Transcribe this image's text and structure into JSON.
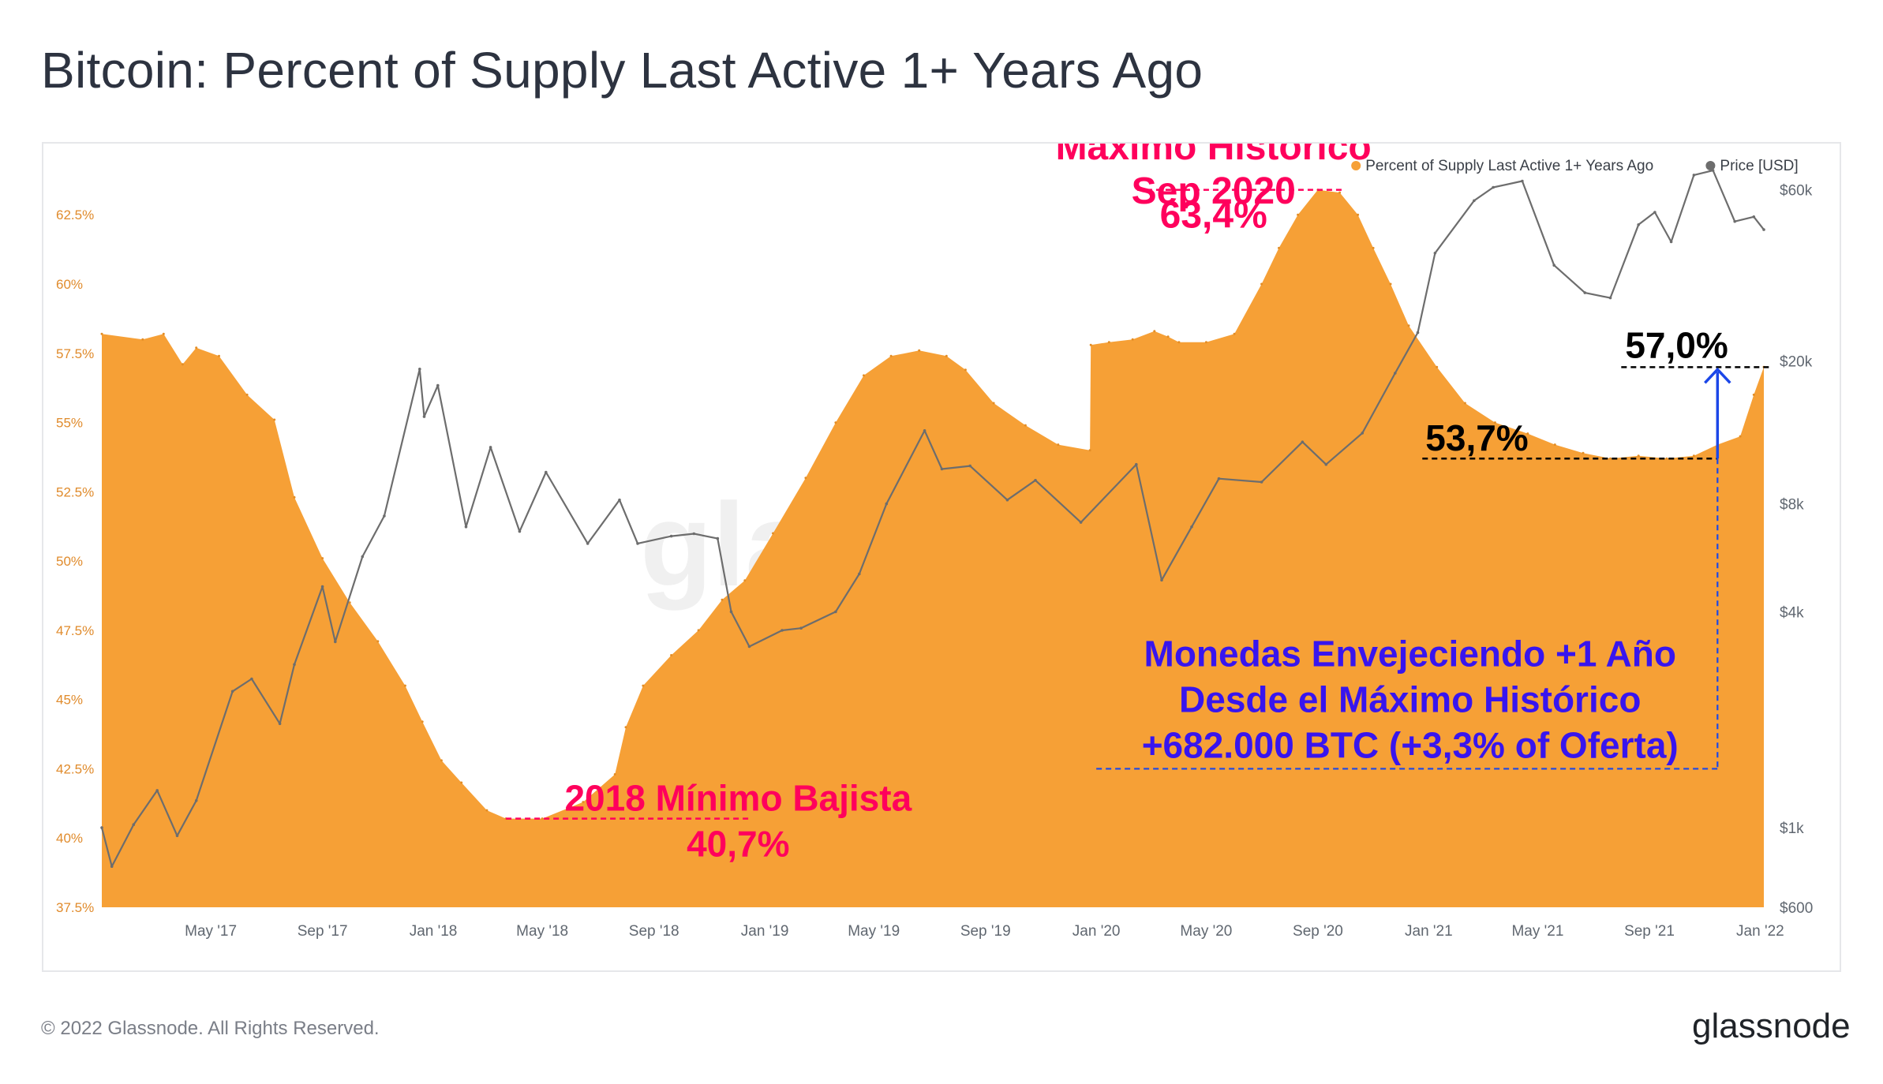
{
  "title": "Bitcoin: Percent of Supply Last Active 1+ Years Ago",
  "footer": {
    "copyright": "© 2022 Glassnode. All Rights Reserved.",
    "brand": "glassnode"
  },
  "watermark": "glassnode",
  "colors": {
    "orange": "#f6a036",
    "price": "#6d6d6d",
    "pink": "#ff005c",
    "blue": "#3815ee",
    "axis": "#606770",
    "axis_left": "#e08b2c"
  },
  "chart_data": {
    "type": "area",
    "series": [
      {
        "name": "Percent of Supply Last Active 1+ Years Ago",
        "axis": "left",
        "points": [
          [
            "2017-01-01",
            58.2
          ],
          [
            "2017-02-15",
            58.0
          ],
          [
            "2017-03-10",
            58.2
          ],
          [
            "2017-03-31",
            57.1
          ],
          [
            "2017-04-15",
            57.7
          ],
          [
            "2017-05-10",
            57.4
          ],
          [
            "2017-06-10",
            56.0
          ],
          [
            "2017-07-10",
            55.1
          ],
          [
            "2017-08-01",
            52.3
          ],
          [
            "2017-09-01",
            50.1
          ],
          [
            "2017-10-01",
            48.5
          ],
          [
            "2017-11-01",
            47.1
          ],
          [
            "2017-12-01",
            45.5
          ],
          [
            "2017-12-20",
            44.2
          ],
          [
            "2018-01-10",
            42.8
          ],
          [
            "2018-02-01",
            42.0
          ],
          [
            "2018-03-01",
            41.0
          ],
          [
            "2018-03-22",
            40.7
          ],
          [
            "2018-05-01",
            40.7
          ],
          [
            "2018-06-15",
            41.3
          ],
          [
            "2018-07-20",
            42.3
          ],
          [
            "2018-08-01",
            44.0
          ],
          [
            "2018-08-20",
            45.5
          ],
          [
            "2018-09-20",
            46.6
          ],
          [
            "2018-10-20",
            47.5
          ],
          [
            "2018-11-15",
            48.6
          ],
          [
            "2018-12-10",
            49.3
          ],
          [
            "2019-01-10",
            51.0
          ],
          [
            "2019-02-15",
            53.0
          ],
          [
            "2019-03-20",
            55.0
          ],
          [
            "2019-04-20",
            56.7
          ],
          [
            "2019-05-20",
            57.4
          ],
          [
            "2019-06-20",
            57.6
          ],
          [
            "2019-07-20",
            57.4
          ],
          [
            "2019-08-10",
            56.9
          ],
          [
            "2019-09-10",
            55.7
          ],
          [
            "2019-10-15",
            54.9
          ],
          [
            "2019-11-20",
            54.2
          ],
          [
            "2019-12-25",
            54.0
          ],
          [
            "2019-12-26",
            57.8
          ],
          [
            "2020-01-15",
            57.9
          ],
          [
            "2020-02-10",
            58.0
          ],
          [
            "2020-03-05",
            58.3
          ],
          [
            "2020-03-20",
            58.1
          ],
          [
            "2020-04-01",
            57.9
          ],
          [
            "2020-05-01",
            57.9
          ],
          [
            "2020-06-01",
            58.2
          ],
          [
            "2020-07-01",
            60.0
          ],
          [
            "2020-07-20",
            61.3
          ],
          [
            "2020-08-10",
            62.5
          ],
          [
            "2020-09-01",
            63.4
          ],
          [
            "2020-09-25",
            63.3
          ],
          [
            "2020-10-15",
            62.5
          ],
          [
            "2020-11-01",
            61.3
          ],
          [
            "2020-11-20",
            60.0
          ],
          [
            "2020-12-10",
            58.5
          ],
          [
            "2021-01-10",
            57.0
          ],
          [
            "2021-02-10",
            55.7
          ],
          [
            "2021-03-15",
            55.0
          ],
          [
            "2021-04-20",
            54.6
          ],
          [
            "2021-05-20",
            54.2
          ],
          [
            "2021-06-20",
            53.9
          ],
          [
            "2021-07-20",
            53.7
          ],
          [
            "2021-08-20",
            53.8
          ],
          [
            "2021-09-20",
            53.7
          ],
          [
            "2021-10-20",
            53.8
          ],
          [
            "2021-11-15",
            54.2
          ],
          [
            "2021-12-10",
            54.5
          ],
          [
            "2021-12-25",
            56.0
          ],
          [
            "2022-01-05",
            57.0
          ]
        ]
      },
      {
        "name": "Price [USD]",
        "axis": "right",
        "points": [
          [
            "2017-01-01",
            1000
          ],
          [
            "2017-01-12",
            780
          ],
          [
            "2017-02-05",
            1020
          ],
          [
            "2017-03-03",
            1270
          ],
          [
            "2017-03-25",
            950
          ],
          [
            "2017-04-15",
            1190
          ],
          [
            "2017-05-25",
            2400
          ],
          [
            "2017-06-15",
            2600
          ],
          [
            "2017-07-16",
            1950
          ],
          [
            "2017-08-01",
            2850
          ],
          [
            "2017-09-01",
            4700
          ],
          [
            "2017-09-15",
            3300
          ],
          [
            "2017-10-15",
            5700
          ],
          [
            "2017-11-08",
            7400
          ],
          [
            "2017-12-17",
            19000
          ],
          [
            "2017-12-22",
            14000
          ],
          [
            "2018-01-06",
            17100
          ],
          [
            "2018-02-06",
            6900
          ],
          [
            "2018-03-05",
            11500
          ],
          [
            "2018-04-06",
            6700
          ],
          [
            "2018-05-05",
            9800
          ],
          [
            "2018-06-20",
            6200
          ],
          [
            "2018-07-25",
            8200
          ],
          [
            "2018-08-14",
            6200
          ],
          [
            "2018-09-20",
            6500
          ],
          [
            "2018-10-15",
            6600
          ],
          [
            "2018-11-10",
            6400
          ],
          [
            "2018-11-25",
            4000
          ],
          [
            "2018-12-15",
            3200
          ],
          [
            "2019-01-20",
            3550
          ],
          [
            "2019-02-10",
            3600
          ],
          [
            "2019-03-20",
            4000
          ],
          [
            "2019-04-15",
            5100
          ],
          [
            "2019-05-15",
            8000
          ],
          [
            "2019-06-26",
            12800
          ],
          [
            "2019-07-15",
            10000
          ],
          [
            "2019-08-15",
            10200
          ],
          [
            "2019-09-25",
            8200
          ],
          [
            "2019-10-26",
            9300
          ],
          [
            "2019-12-15",
            7100
          ],
          [
            "2020-02-14",
            10300
          ],
          [
            "2020-03-13",
            4900
          ],
          [
            "2020-04-15",
            6900
          ],
          [
            "2020-05-15",
            9400
          ],
          [
            "2020-07-01",
            9200
          ],
          [
            "2020-08-15",
            11900
          ],
          [
            "2020-09-10",
            10300
          ],
          [
            "2020-10-20",
            12600
          ],
          [
            "2020-11-25",
            18500
          ],
          [
            "2020-12-20",
            24000
          ],
          [
            "2021-01-08",
            40000
          ],
          [
            "2021-02-20",
            56000
          ],
          [
            "2021-03-13",
            61000
          ],
          [
            "2021-04-14",
            63500
          ],
          [
            "2021-05-19",
            37000
          ],
          [
            "2021-06-22",
            31000
          ],
          [
            "2021-07-20",
            30000
          ],
          [
            "2021-08-20",
            48000
          ],
          [
            "2021-09-07",
            52000
          ],
          [
            "2021-09-25",
            43000
          ],
          [
            "2021-10-20",
            66000
          ],
          [
            "2021-11-10",
            68000
          ],
          [
            "2021-12-04",
            49000
          ],
          [
            "2021-12-25",
            50500
          ],
          [
            "2022-01-05",
            46500
          ]
        ]
      }
    ],
    "y_left": {
      "min": 37.5,
      "max": 64.5,
      "ticks": [
        {
          "value": 37.5,
          "label": "37.5%"
        },
        {
          "value": 40,
          "label": "40%"
        },
        {
          "value": 42.5,
          "label": "42.5%"
        },
        {
          "value": 45,
          "label": "45%"
        },
        {
          "value": 47.5,
          "label": "47.5%"
        },
        {
          "value": 50,
          "label": "50%"
        },
        {
          "value": 52.5,
          "label": "52.5%"
        },
        {
          "value": 55,
          "label": "55%"
        },
        {
          "value": 57.5,
          "label": "57.5%"
        },
        {
          "value": 60,
          "label": "60%"
        },
        {
          "value": 62.5,
          "label": "62.5%"
        }
      ]
    },
    "y_right": {
      "scale": "log",
      "min": 600,
      "max": 73000,
      "ticks": [
        {
          "value": 600,
          "label": "$600"
        },
        {
          "value": 1000,
          "label": "$1k"
        },
        {
          "value": 4000,
          "label": "$4k"
        },
        {
          "value": 8000,
          "label": "$8k"
        },
        {
          "value": 20000,
          "label": "$20k"
        },
        {
          "value": 60000,
          "label": "$60k"
        }
      ]
    },
    "x": {
      "min": "2017-01-01",
      "max": "2022-01-05",
      "ticks": [
        {
          "date": "2017-05-01",
          "label": "May '17"
        },
        {
          "date": "2017-09-01",
          "label": "Sep '17"
        },
        {
          "date": "2018-01-01",
          "label": "Jan '18"
        },
        {
          "date": "2018-05-01",
          "label": "May '18"
        },
        {
          "date": "2018-09-01",
          "label": "Sep '18"
        },
        {
          "date": "2019-01-01",
          "label": "Jan '19"
        },
        {
          "date": "2019-05-01",
          "label": "May '19"
        },
        {
          "date": "2019-09-01",
          "label": "Sep '19"
        },
        {
          "date": "2020-01-01",
          "label": "Jan '20"
        },
        {
          "date": "2020-05-01",
          "label": "May '20"
        },
        {
          "date": "2020-09-01",
          "label": "Sep '20"
        },
        {
          "date": "2021-01-01",
          "label": "Jan '21"
        },
        {
          "date": "2021-05-01",
          "label": "May '21"
        },
        {
          "date": "2021-09-01",
          "label": "Sep '21"
        },
        {
          "date": "2022-01-01",
          "label": "Jan '22"
        }
      ]
    },
    "legend": [
      {
        "label": "Percent of Supply Last Active 1+ Years Ago",
        "color": "#f6a036"
      },
      {
        "label": "Price [USD]",
        "color": "#6d6d6d"
      }
    ],
    "annotations": {
      "ath": {
        "lines": [
          "Máximo Histórico",
          "Sep 2020",
          "63,4%"
        ],
        "value": 63.4,
        "from": "2020-02-15",
        "to": "2020-10-01"
      },
      "low": {
        "lines": [
          "2018 Mínimo Bajista",
          "40,7%"
        ],
        "value": 40.7,
        "from": "2018-03-22",
        "to": "2018-12-15"
      },
      "level_537": {
        "label": "53,7%",
        "value": 53.7,
        "from": "2020-12-25",
        "to": "2021-11-15"
      },
      "level_570": {
        "label": "57,0%",
        "value": 57.0,
        "from": "2021-08-01",
        "to": "2022-01-05"
      },
      "aging": {
        "lines": [
          "Monedas Envejeciendo +1 Año",
          "Desde el Máximo Histórico",
          "+682.000 BTC (+3,3% of Oferta)"
        ],
        "arrow_date": "2021-11-15",
        "arrow_from": 53.7,
        "arrow_to": 57.0,
        "bracket_value": 42.5,
        "bracket_from": "2020-01-01"
      }
    }
  }
}
